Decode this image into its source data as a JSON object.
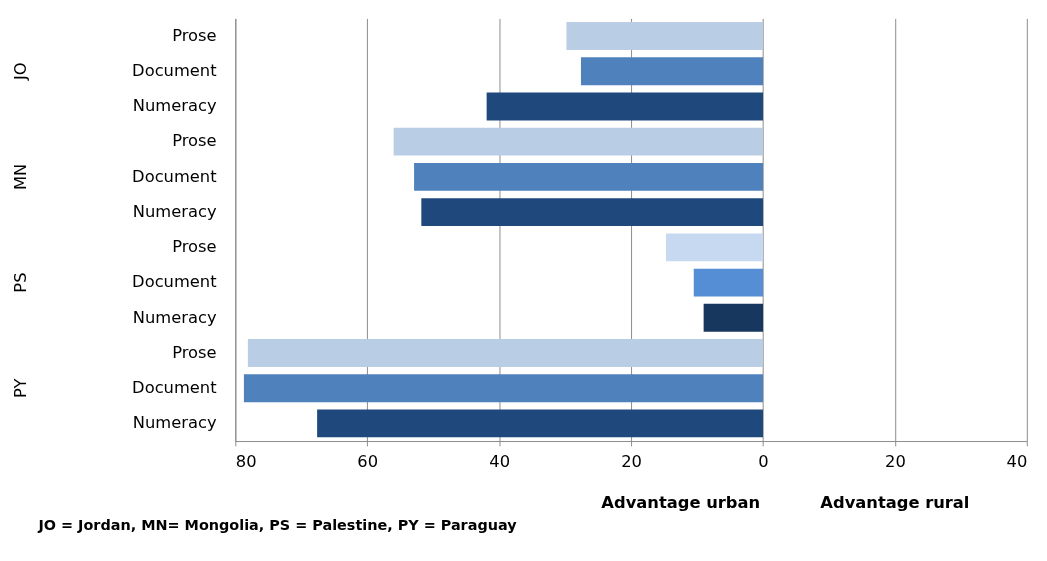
{
  "chart_data": {
    "type": "bar",
    "orientation": "horizontal",
    "categories": [
      "Prose",
      "Document",
      "Numeracy",
      "Prose",
      "Document",
      "Numeracy",
      "Prose",
      "Document",
      "Numeracy",
      "Prose",
      "Document",
      "Numeracy"
    ],
    "values": [
      -29.8,
      -27.6,
      -41.9,
      -56,
      -52.9,
      -51.8,
      -14.7,
      -10.5,
      -9.0,
      -78.1,
      -78.7,
      -67.6
    ],
    "colors": [
      "#b9cde5",
      "#4f81bd",
      "#1f497d",
      "#b9cde5",
      "#4f81bd",
      "#1f497d",
      "#c6d9f1",
      "#558ed5",
      "#17375e",
      "#b9cde5",
      "#4f81bd",
      "#1f497d"
    ],
    "xlim": [
      -80,
      40
    ],
    "xticks": [
      {
        "value": -80,
        "label": "80"
      },
      {
        "value": -60,
        "label": "60"
      },
      {
        "value": -40,
        "label": "40"
      },
      {
        "value": -20,
        "label": "20"
      },
      0,
      20,
      40
    ],
    "grid": "x",
    "legend": false,
    "annotations": [
      "JO",
      "MN",
      "PS",
      "PY",
      "Advantage urban",
      "Advantage rural",
      "JO = Jordan, MN= Mongolia, PS = Palestine, PY = Paraguay"
    ]
  }
}
